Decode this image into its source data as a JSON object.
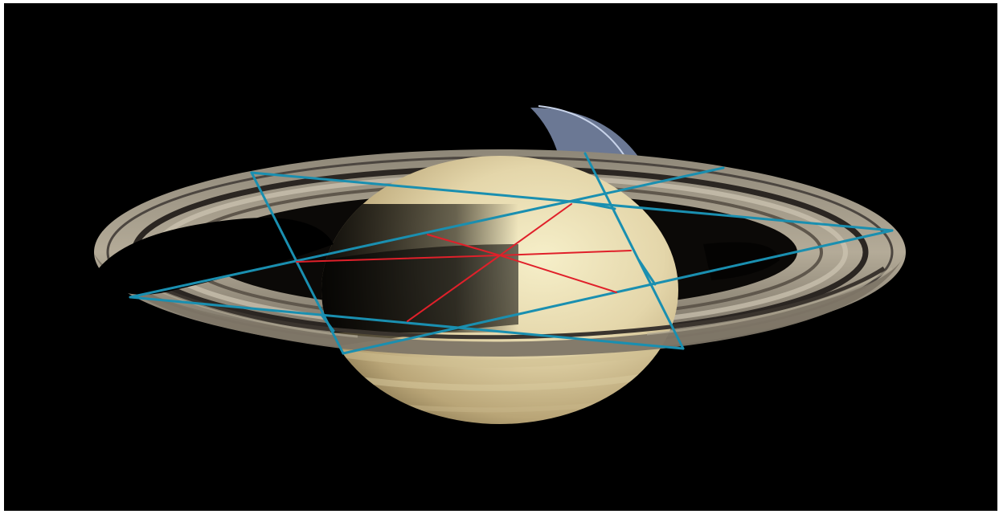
{
  "image": {
    "subject": "saturn-with-rings",
    "background_color": "#000000",
    "frame_color": "#ffffff"
  },
  "overlay": {
    "cyan_color": "#1a8fb0",
    "red_color": "#e0202a",
    "cyan_line_count": 9,
    "red_line_count": 5
  }
}
